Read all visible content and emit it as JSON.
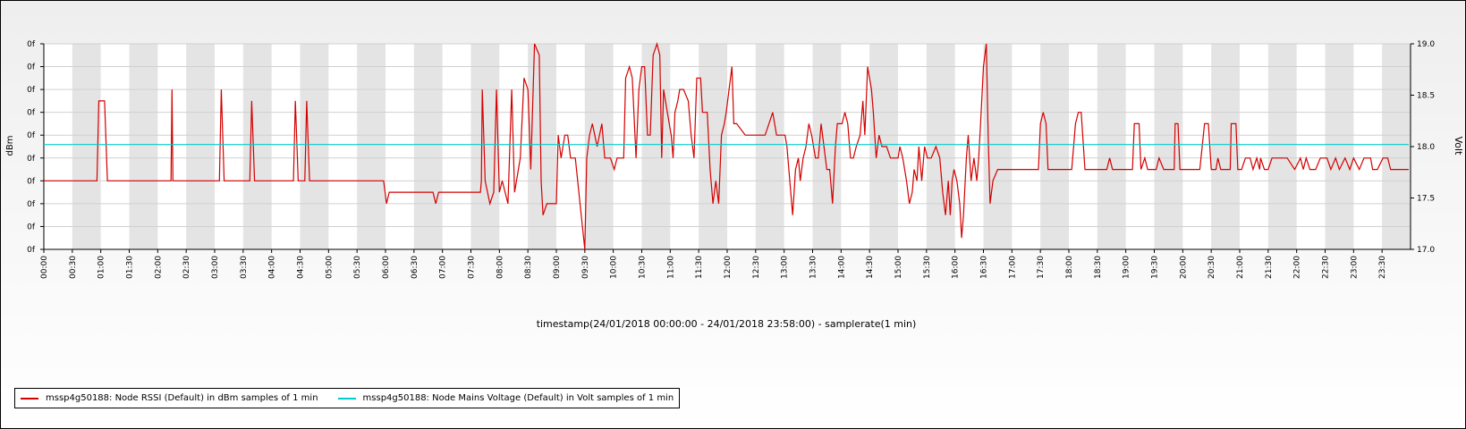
{
  "chart_data": {
    "type": "line",
    "xlabel": "timestamp(24/01/2018 00:00:00 - 24/01/2018 23:58:00) - samplerate(1 min)",
    "ylabel_left": "dBm",
    "ylabel_right": "Volt",
    "x_tick_labels": [
      "00:00",
      "00:30",
      "01:00",
      "01:30",
      "02:00",
      "02:30",
      "03:00",
      "03:30",
      "04:00",
      "04:30",
      "05:00",
      "05:30",
      "06:00",
      "06:30",
      "07:00",
      "07:30",
      "08:00",
      "08:30",
      "09:00",
      "09:30",
      "10:00",
      "10:30",
      "11:00",
      "11:30",
      "12:00",
      "12:30",
      "13:00",
      "13:30",
      "14:00",
      "14:30",
      "15:00",
      "15:30",
      "16:00",
      "16:30",
      "17:00",
      "17:30",
      "18:00",
      "18:30",
      "19:00",
      "19:30",
      "20:00",
      "20:30",
      "21:00",
      "21:30",
      "22:00",
      "22:30",
      "23:00",
      "23:30"
    ],
    "left_tick_labels": [
      "0f",
      "0f",
      "0f",
      "0f",
      "0f",
      "0f",
      "0f",
      "0f",
      "0f",
      "0f"
    ],
    "right_axis": {
      "ticks": [
        17.0,
        17.5,
        18.0,
        18.5,
        19.0
      ],
      "tick_labels": [
        "17.0",
        "17.5",
        "18.0",
        "18.5",
        "19.0"
      ],
      "ylim": [
        17.0,
        19.0
      ]
    },
    "left_axis_ylim": [
      0,
      9
    ],
    "x_range_minutes": [
      0,
      1438
    ],
    "band_pattern": "alternate grey/white per 30 min",
    "grid": true,
    "legend_position": "bottom-left",
    "series": [
      {
        "name": "mssp4g50188: Node RSSI (Default) in dBm samples of 1 min",
        "color": "#d40000",
        "axis": "left",
        "points": [
          [
            0,
            3
          ],
          [
            56,
            3
          ],
          [
            58,
            6.5
          ],
          [
            64,
            6.5
          ],
          [
            67,
            3
          ],
          [
            134,
            3
          ],
          [
            135,
            7
          ],
          [
            136,
            3
          ],
          [
            185,
            3
          ],
          [
            187,
            7
          ],
          [
            190,
            3
          ],
          [
            217,
            3
          ],
          [
            219,
            6.5
          ],
          [
            222,
            3
          ],
          [
            263,
            3
          ],
          [
            265,
            6.5
          ],
          [
            268,
            3
          ],
          [
            275,
            3
          ],
          [
            277,
            6.5
          ],
          [
            280,
            3
          ],
          [
            358,
            3
          ],
          [
            361,
            2
          ],
          [
            364,
            2.5
          ],
          [
            410,
            2.5
          ],
          [
            413,
            2
          ],
          [
            416,
            2.5
          ],
          [
            460,
            2.5
          ],
          [
            461,
            3
          ],
          [
            462,
            7
          ],
          [
            465,
            3
          ],
          [
            470,
            2
          ],
          [
            474,
            2.5
          ],
          [
            477,
            7
          ],
          [
            480,
            2.5
          ],
          [
            483,
            3
          ],
          [
            489,
            2
          ],
          [
            493,
            7
          ],
          [
            496,
            2.5
          ],
          [
            502,
            4
          ],
          [
            506,
            7.5
          ],
          [
            510,
            7
          ],
          [
            513,
            3.5
          ],
          [
            517,
            9
          ],
          [
            522,
            8.5
          ],
          [
            524,
            3
          ],
          [
            526,
            1.5
          ],
          [
            530,
            2
          ],
          [
            540,
            2
          ],
          [
            542,
            5
          ],
          [
            545,
            4
          ],
          [
            549,
            5
          ],
          [
            552,
            5
          ],
          [
            555,
            4
          ],
          [
            560,
            4
          ],
          [
            570,
            0
          ],
          [
            572,
            4
          ],
          [
            575,
            5
          ],
          [
            578,
            5.5
          ],
          [
            583,
            4.5
          ],
          [
            588,
            5.5
          ],
          [
            591,
            4
          ],
          [
            597,
            4
          ],
          [
            601,
            3.5
          ],
          [
            604,
            4
          ],
          [
            611,
            4
          ],
          [
            613,
            7.5
          ],
          [
            617,
            8
          ],
          [
            620,
            7.5
          ],
          [
            624,
            4
          ],
          [
            627,
            7
          ],
          [
            630,
            8
          ],
          [
            633,
            8
          ],
          [
            636,
            5
          ],
          [
            639,
            5
          ],
          [
            642,
            8.5
          ],
          [
            646,
            9
          ],
          [
            649,
            8.5
          ],
          [
            651,
            4
          ],
          [
            653,
            7
          ],
          [
            657,
            6
          ],
          [
            661,
            5
          ],
          [
            663,
            4
          ],
          [
            665,
            6
          ],
          [
            668,
            6.5
          ],
          [
            670,
            7
          ],
          [
            674,
            7
          ],
          [
            679,
            6.5
          ],
          [
            682,
            5
          ],
          [
            685,
            4
          ],
          [
            688,
            7.5
          ],
          [
            692,
            7.5
          ],
          [
            694,
            6
          ],
          [
            699,
            6
          ],
          [
            702,
            3.5
          ],
          [
            705,
            2
          ],
          [
            708,
            3
          ],
          [
            711,
            2
          ],
          [
            714,
            5
          ],
          [
            717,
            5.5
          ],
          [
            719,
            6
          ],
          [
            722,
            7
          ],
          [
            725,
            8
          ],
          [
            727,
            5.5
          ],
          [
            730,
            5.5
          ],
          [
            739,
            5
          ],
          [
            755,
            5
          ],
          [
            760,
            5
          ],
          [
            764,
            5.5
          ],
          [
            768,
            6
          ],
          [
            772,
            5
          ],
          [
            781,
            5
          ],
          [
            783,
            4.5
          ],
          [
            786,
            3
          ],
          [
            789,
            1.5
          ],
          [
            792,
            3.5
          ],
          [
            795,
            4
          ],
          [
            797,
            3
          ],
          [
            800,
            4
          ],
          [
            803,
            4.5
          ],
          [
            806,
            5.5
          ],
          [
            809,
            5
          ],
          [
            813,
            4
          ],
          [
            816,
            4
          ],
          [
            819,
            5.5
          ],
          [
            822,
            4.5
          ],
          [
            825,
            3.5
          ],
          [
            828,
            3.5
          ],
          [
            831,
            2
          ],
          [
            834,
            4.5
          ],
          [
            836,
            5.5
          ],
          [
            841,
            5.5
          ],
          [
            844,
            6
          ],
          [
            847,
            5.5
          ],
          [
            850,
            4
          ],
          [
            853,
            4
          ],
          [
            856,
            4.5
          ],
          [
            860,
            5
          ],
          [
            863,
            6.5
          ],
          [
            865,
            5
          ],
          [
            868,
            8
          ],
          [
            872,
            7
          ],
          [
            874,
            6
          ],
          [
            877,
            4
          ],
          [
            880,
            5
          ],
          [
            883,
            4.5
          ],
          [
            888,
            4.5
          ],
          [
            892,
            4
          ],
          [
            896,
            4
          ],
          [
            900,
            4
          ],
          [
            902,
            4.5
          ],
          [
            905,
            4
          ],
          [
            909,
            3
          ],
          [
            912,
            2
          ],
          [
            915,
            2.5
          ],
          [
            917,
            3.5
          ],
          [
            920,
            3
          ],
          [
            922,
            4.5
          ],
          [
            925,
            3
          ],
          [
            928,
            4.5
          ],
          [
            931,
            4
          ],
          [
            935,
            4
          ],
          [
            940,
            4.5
          ],
          [
            944,
            4
          ],
          [
            947,
            2.5
          ],
          [
            950,
            1.5
          ],
          [
            953,
            3
          ],
          [
            955,
            1.5
          ],
          [
            957,
            3
          ],
          [
            959,
            3.5
          ],
          [
            962,
            3
          ],
          [
            965,
            2
          ],
          [
            967,
            0.5
          ],
          [
            969,
            1.5
          ],
          [
            972,
            4
          ],
          [
            974,
            5
          ],
          [
            977,
            3
          ],
          [
            980,
            4
          ],
          [
            983,
            3
          ],
          [
            985,
            4
          ],
          [
            987,
            5.5
          ],
          [
            990,
            8
          ],
          [
            993,
            9
          ],
          [
            995,
            5
          ],
          [
            997,
            2
          ],
          [
            1000,
            3
          ],
          [
            1005,
            3.5
          ],
          [
            1010,
            3.5
          ],
          [
            1030,
            3.5
          ],
          [
            1032,
            3.5
          ],
          [
            1048,
            3.5
          ],
          [
            1050,
            5.5
          ],
          [
            1053,
            6
          ],
          [
            1056,
            5.5
          ],
          [
            1058,
            3.5
          ],
          [
            1063,
            3.5
          ],
          [
            1070,
            3.5
          ],
          [
            1076,
            3.5
          ],
          [
            1083,
            3.5
          ],
          [
            1087,
            5.5
          ],
          [
            1090,
            6
          ],
          [
            1093,
            6
          ],
          [
            1097,
            3.5
          ],
          [
            1120,
            3.5
          ],
          [
            1123,
            4
          ],
          [
            1126,
            3.5
          ],
          [
            1133,
            3.5
          ],
          [
            1139,
            3.5
          ],
          [
            1147,
            3.5
          ],
          [
            1149,
            5.5
          ],
          [
            1154,
            5.5
          ],
          [
            1156,
            3.5
          ],
          [
            1160,
            4
          ],
          [
            1163,
            3.5
          ],
          [
            1172,
            3.5
          ],
          [
            1175,
            4
          ],
          [
            1180,
            3.5
          ],
          [
            1191,
            3.5
          ],
          [
            1192,
            5.5
          ],
          [
            1195,
            5.5
          ],
          [
            1197,
            3.5
          ],
          [
            1218,
            3.5
          ],
          [
            1223,
            5.5
          ],
          [
            1227,
            5.5
          ],
          [
            1230,
            3.5
          ],
          [
            1235,
            3.5
          ],
          [
            1237,
            4
          ],
          [
            1240,
            3.5
          ],
          [
            1250,
            3.5
          ],
          [
            1251,
            5.5
          ],
          [
            1256,
            5.5
          ],
          [
            1258,
            3.5
          ],
          [
            1262,
            3.5
          ],
          [
            1266,
            4
          ],
          [
            1271,
            4
          ],
          [
            1274,
            3.5
          ],
          [
            1278,
            4
          ],
          [
            1281,
            3.5
          ],
          [
            1282,
            4
          ],
          [
            1286,
            3.5
          ],
          [
            1290,
            3.5
          ],
          [
            1294,
            4
          ],
          [
            1310,
            4
          ],
          [
            1318,
            3.5
          ],
          [
            1324,
            4
          ],
          [
            1327,
            3.5
          ],
          [
            1330,
            4
          ],
          [
            1334,
            3.5
          ],
          [
            1340,
            3.5
          ],
          [
            1345,
            4
          ],
          [
            1352,
            4
          ],
          [
            1356,
            3.5
          ],
          [
            1361,
            4
          ],
          [
            1365,
            3.5
          ],
          [
            1371,
            4
          ],
          [
            1376,
            3.5
          ],
          [
            1380,
            4
          ],
          [
            1386,
            3.5
          ],
          [
            1391,
            4
          ],
          [
            1398,
            4
          ],
          [
            1400,
            3.5
          ],
          [
            1405,
            3.5
          ],
          [
            1411,
            4
          ],
          [
            1416,
            4
          ],
          [
            1419,
            3.5
          ],
          [
            1424,
            3.5
          ],
          [
            1430,
            3.5
          ],
          [
            1434,
            3.5
          ],
          [
            1438,
            3.5
          ]
        ]
      },
      {
        "name": "mssp4g50188: Node Mains Voltage (Default) in Volt samples of 1 min",
        "color": "#00cccc",
        "axis": "right",
        "points": [
          [
            0,
            18.02
          ],
          [
            1438,
            18.02
          ]
        ]
      }
    ]
  }
}
